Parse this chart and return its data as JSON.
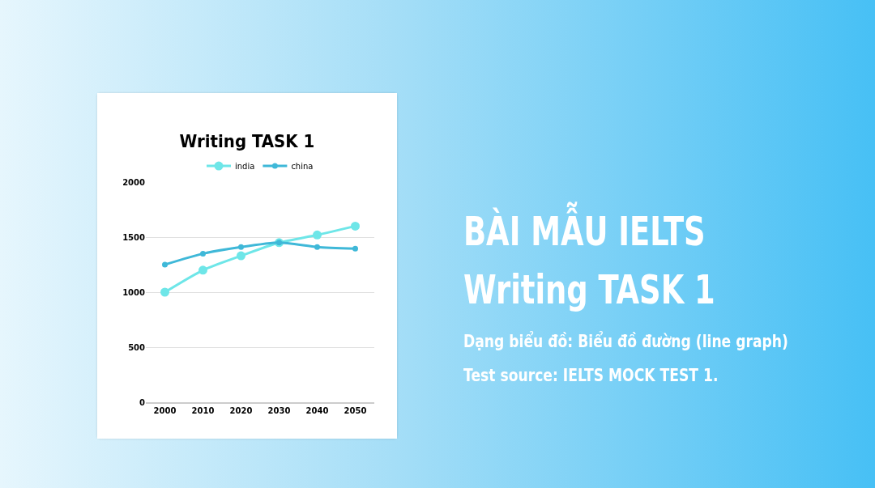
{
  "chart_data": {
    "type": "line",
    "title": "Writing TASK 1",
    "categories": [
      "2000",
      "2010",
      "2020",
      "2030",
      "2040",
      "2050"
    ],
    "series": [
      {
        "name": "india",
        "color": "#6ee6e8",
        "values": [
          1000,
          1200,
          1330,
          1450,
          1520,
          1600
        ]
      },
      {
        "name": "china",
        "color": "#3fb8d8",
        "values": [
          1250,
          1350,
          1410,
          1450,
          1410,
          1395
        ]
      }
    ],
    "ylim": [
      0,
      2000
    ],
    "yticks": [
      0,
      500,
      1000,
      1500,
      2000
    ],
    "grid": "y",
    "legend": "top",
    "marker": "circle",
    "line_style": "solid",
    "annotations": [
      "BÀI MẪU IELTS",
      "Writing TASK 1",
      "Dạng biểu đồ: Biểu đồ đường (line graph)",
      "Test source: IELTS MOCK TEST 1."
    ]
  }
}
